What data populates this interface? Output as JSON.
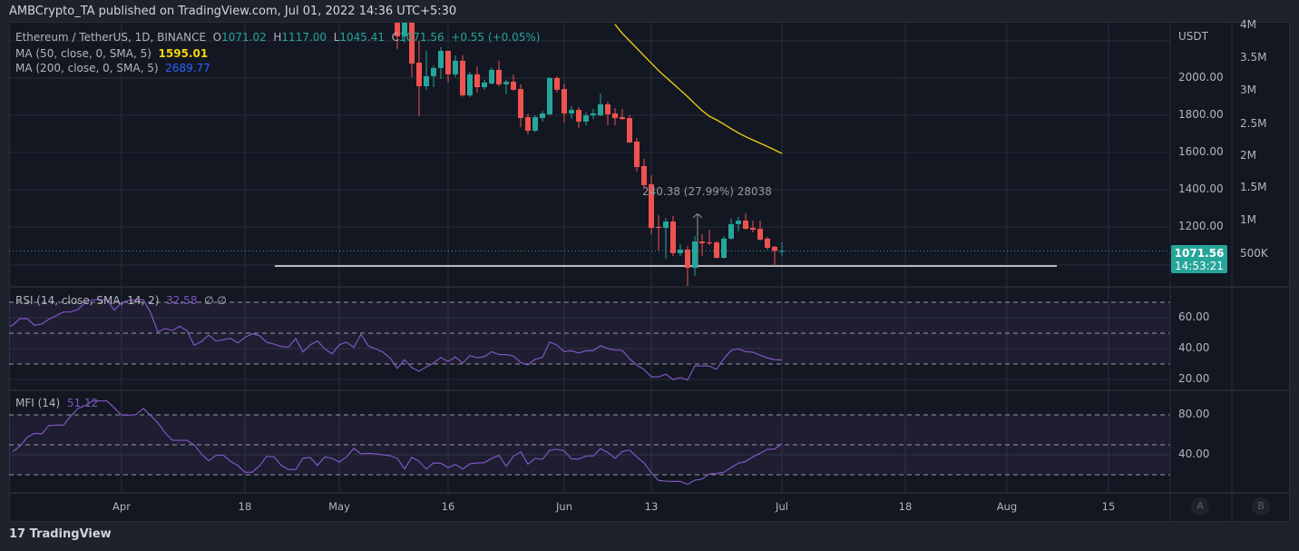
{
  "header": {
    "text": "AMBCrypto_TA published on TradingView.com, Jul 01, 2022 14:36 UTC+5:30"
  },
  "legend": {
    "symbol": "Ethereum / TetherUS, 1D, BINANCE",
    "o_label": "O",
    "o": "1071.02",
    "h_label": "H",
    "h": "1117.00",
    "l_label": "L",
    "l": "1045.41",
    "c_label": "C",
    "c": "1071.56",
    "change": "+0.55 (+0.05%)",
    "ma50_label": "MA (50, close, 0, SMA, 5)",
    "ma50_value": "1595.01",
    "ma200_label": "MA (200, close, 0, SMA, 5)",
    "ma200_value": "2689.77",
    "rsi_label": "RSI (14, close, SMA, 14, 2)",
    "rsi_value": "32.58",
    "rsi_extra": "∅  ∅",
    "mfi_label": "MFI (14)",
    "mfi_value": "51.12"
  },
  "price_tag": {
    "price": "1071.56",
    "countdown": "14:53:21"
  },
  "measure_label": "240.38 (27.99%) 28038",
  "footer": {
    "logo_text": "TradingView"
  },
  "buttons": {
    "a": "A",
    "b": "B"
  },
  "colors": {
    "up": "#26a69a",
    "down": "#ef5350",
    "ma50": "#f2d40f",
    "ma200": "#2962ff",
    "oscillator": "#7e57c2",
    "background": "#131722"
  },
  "chart_data": [
    {
      "type": "candlestick",
      "currency_label": "USDT",
      "y_ticks": [
        "2000.00",
        "1800.00",
        "1600.00",
        "1400.00",
        "1200.00"
      ],
      "volume_ticks": [
        "4M",
        "3.5M",
        "3M",
        "2.5M",
        "2M",
        "1.5M",
        "1M",
        "500K"
      ],
      "x_ticks": [
        "Apr",
        "18",
        "May",
        "16",
        "Jun",
        "13",
        "Jul",
        "18",
        "Aug",
        "15"
      ],
      "ylim": [
        880,
        2300
      ],
      "grid": true,
      "horizontal_line": 990,
      "candles": [
        [
          "2022-05-09",
          2397,
          2403,
          2155,
          2224
        ],
        [
          "2022-05-10",
          2224,
          2452,
          2190,
          2342
        ],
        [
          "2022-05-11",
          2342,
          2450,
          2005,
          2078
        ],
        [
          "2022-05-12",
          2083,
          2200,
          1795,
          1956
        ],
        [
          "2022-05-13",
          1956,
          2146,
          1937,
          2010
        ],
        [
          "2022-05-14",
          2010,
          2068,
          1951,
          2054
        ],
        [
          "2022-05-15",
          2054,
          2166,
          1995,
          2146
        ],
        [
          "2022-05-16",
          2146,
          2146,
          1976,
          2020
        ],
        [
          "2022-05-17",
          2020,
          2122,
          2005,
          2093
        ],
        [
          "2022-05-18",
          2093,
          2122,
          1900,
          1907
        ],
        [
          "2022-05-19",
          1907,
          2034,
          1898,
          2020
        ],
        [
          "2022-05-20",
          2020,
          2063,
          1922,
          1951
        ],
        [
          "2022-05-21",
          1951,
          1990,
          1937,
          1976
        ],
        [
          "2022-05-22",
          1971,
          2058,
          1966,
          2044
        ],
        [
          "2022-05-23",
          2044,
          2093,
          1956,
          1966
        ],
        [
          "2022-05-24",
          1966,
          1990,
          1912,
          1980
        ],
        [
          "2022-05-25",
          1980,
          2020,
          1932,
          1937
        ],
        [
          "2022-05-26",
          1941,
          1966,
          1736,
          1785
        ],
        [
          "2022-05-27",
          1790,
          1810,
          1697,
          1717
        ],
        [
          "2022-05-28",
          1717,
          1800,
          1710,
          1790
        ],
        [
          "2022-05-29",
          1785,
          1824,
          1766,
          1810
        ],
        [
          "2022-05-30",
          1805,
          2005,
          1800,
          2000
        ],
        [
          "2022-05-31",
          2000,
          2010,
          1922,
          1937
        ],
        [
          "2022-06-01",
          1941,
          1971,
          1761,
          1810
        ],
        [
          "2022-06-02",
          1810,
          1849,
          1780,
          1829
        ],
        [
          "2022-06-03",
          1829,
          1844,
          1732,
          1766
        ],
        [
          "2022-06-04",
          1766,
          1815,
          1746,
          1800
        ],
        [
          "2022-06-05",
          1800,
          1834,
          1780,
          1810
        ],
        [
          "2022-06-06",
          1800,
          1917,
          1795,
          1859
        ],
        [
          "2022-06-07",
          1859,
          1873,
          1746,
          1805
        ],
        [
          "2022-06-08",
          1810,
          1839,
          1746,
          1785
        ],
        [
          "2022-06-09",
          1790,
          1834,
          1775,
          1780
        ],
        [
          "2022-06-10",
          1785,
          1800,
          1650,
          1654
        ],
        [
          "2022-06-11",
          1659,
          1678,
          1498,
          1522
        ],
        [
          "2022-06-12",
          1527,
          1566,
          1415,
          1424
        ],
        [
          "2022-06-13",
          1429,
          1478,
          1161,
          1195
        ],
        [
          "2022-06-14",
          1200,
          1263,
          1073,
          1195
        ],
        [
          "2022-06-15",
          1195,
          1249,
          1029,
          1229
        ],
        [
          "2022-06-16",
          1229,
          1259,
          1044,
          1059
        ],
        [
          "2022-06-17",
          1059,
          1107,
          1044,
          1078
        ],
        [
          "2022-06-18",
          1078,
          1098,
          883,
          980
        ],
        [
          "2022-06-19",
          980,
          1151,
          937,
          1122
        ],
        [
          "2022-06-20",
          1122,
          1161,
          1044,
          1112
        ],
        [
          "2022-06-21",
          1117,
          1185,
          1102,
          1112
        ],
        [
          "2022-06-22",
          1117,
          1125,
          1030,
          1034
        ],
        [
          "2022-06-23",
          1034,
          1151,
          1030,
          1137
        ],
        [
          "2022-06-24",
          1137,
          1244,
          1132,
          1215
        ],
        [
          "2022-06-25",
          1215,
          1254,
          1176,
          1234
        ],
        [
          "2022-06-26",
          1234,
          1273,
          1185,
          1190
        ],
        [
          "2022-06-27",
          1195,
          1234,
          1171,
          1185
        ],
        [
          "2022-06-28",
          1190,
          1234,
          1127,
          1132
        ],
        [
          "2022-06-29",
          1137,
          1147,
          1078,
          1088
        ],
        [
          "2022-06-30",
          1093,
          1098,
          990,
          1071
        ],
        [
          "2022-07-01",
          1071.02,
          1117,
          1045.41,
          1071.56
        ]
      ],
      "ma50": {
        "start": "2022-06-08",
        "values": [
          2288,
          2240,
          2200,
          2160,
          2120,
          2080,
          2040,
          2005,
          1970,
          1935,
          1900,
          1862,
          1825,
          1795,
          1775,
          1752,
          1728,
          1705,
          1685,
          1667,
          1650,
          1632,
          1614,
          1595
        ]
      }
    },
    {
      "type": "line",
      "name": "RSI (14, close, SMA, 14, 2)",
      "y_ticks": [
        "60.00",
        "40.00",
        "20.00"
      ],
      "bands": [
        70,
        50,
        30
      ],
      "end_date": "2022-07-01",
      "values": [
        53.5,
        55.1,
        59.4,
        59.4,
        55.1,
        55.9,
        59.0,
        61.4,
        63.7,
        63.7,
        65.3,
        69.8,
        71.6,
        71.6,
        71.6,
        64.9,
        69.8,
        71.2,
        71.6,
        71.6,
        63.3,
        50.8,
        53.1,
        51.6,
        54.5,
        51.6,
        42.2,
        44.5,
        48.8,
        44.9,
        45.7,
        46.7,
        43.7,
        47.2,
        49.6,
        48.4,
        44.1,
        42.9,
        41.4,
        41.0,
        46.5,
        37.8,
        42.4,
        44.9,
        39.8,
        36.6,
        42.4,
        44.1,
        40.8,
        49.2,
        41.8,
        39.8,
        37.8,
        33.9,
        27.2,
        32.8,
        27.6,
        25.3,
        28.1,
        30.6,
        34.3,
        31.6,
        34.5,
        30.6,
        35.5,
        34.1,
        34.7,
        38.0,
        36.1,
        36.1,
        35.1,
        31.0,
        29.4,
        33.1,
        34.3,
        44.3,
        42.2,
        38.0,
        38.6,
        37.1,
        38.6,
        38.6,
        41.9,
        40.0,
        39.0,
        38.8,
        33.5,
        29.2,
        26.5,
        21.6,
        21.6,
        23.4,
        20.0,
        21.2,
        19.6,
        28.8,
        28.8,
        28.6,
        26.6,
        33.5,
        38.8,
        39.8,
        38.0,
        37.6,
        35.7,
        33.9,
        32.8,
        32.58
      ]
    },
    {
      "type": "line",
      "name": "MFI (14)",
      "y_ticks": [
        "80.00",
        "40.00"
      ],
      "bands": [
        80,
        50,
        20
      ],
      "end_date": "2022-07-01",
      "values": [
        43.0,
        48.5,
        57.5,
        61.5,
        60.9,
        69.4,
        69.7,
        69.7,
        78.8,
        86.4,
        89.4,
        93.9,
        93.9,
        93.9,
        87.0,
        79.7,
        79.7,
        80.3,
        86.4,
        79.4,
        72.1,
        62.1,
        54.5,
        54.5,
        54.5,
        50.0,
        40.9,
        33.9,
        39.4,
        39.7,
        33.4,
        29.4,
        22.5,
        22.5,
        28.8,
        38.5,
        37.9,
        29.4,
        25.2,
        25.2,
        36.6,
        37.3,
        29.4,
        37.9,
        36.4,
        32.7,
        37.9,
        46.4,
        40.9,
        41.5,
        40.9,
        40.0,
        39.1,
        36.4,
        25.7,
        37.5,
        33.4,
        25.7,
        31.8,
        31.5,
        27.0,
        30.3,
        25.7,
        30.9,
        31.8,
        32.1,
        36.4,
        39.4,
        28.5,
        38.5,
        43.0,
        30.6,
        36.4,
        35.5,
        44.5,
        45.5,
        43.9,
        35.8,
        35.8,
        38.8,
        38.8,
        46.1,
        42.4,
        36.4,
        43.3,
        44.8,
        37.9,
        31.8,
        22.1,
        14.3,
        13.6,
        13.3,
        13.3,
        10.3,
        14.5,
        15.7,
        20.9,
        21.2,
        22.5,
        27.3,
        31.5,
        33.4,
        37.9,
        41.5,
        45.5,
        45.7,
        51.12
      ]
    }
  ]
}
